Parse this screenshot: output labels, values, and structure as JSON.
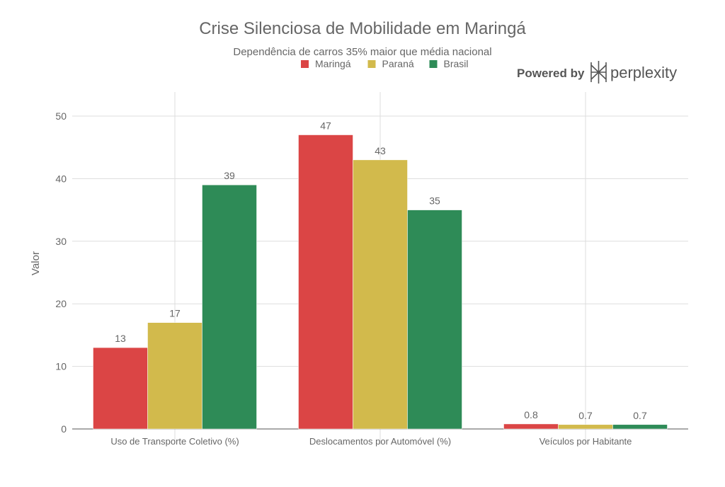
{
  "branding": {
    "powered_by": "Powered by",
    "logo_text": "perplexity"
  },
  "chart_data": {
    "type": "bar",
    "title": "Crise Silenciosa de Mobilidade em Maringá",
    "subtitle": "Dependência de carros 35% maior que média nacional",
    "xlabel": "",
    "ylabel": "Valor",
    "ylim": [
      0,
      50
    ],
    "yticks": [
      "0",
      "10",
      "20",
      "30",
      "40",
      "50"
    ],
    "grid": true,
    "legend_position": "top-center",
    "categories": [
      "Uso de Transporte Coletivo (%)",
      "Deslocamentos por Automóvel (%)",
      "Veículos por Habitante"
    ],
    "series": [
      {
        "name": "Maringá",
        "color": "#db4545",
        "values": [
          13,
          47,
          0.8
        ],
        "labels": [
          "13",
          "47",
          "0.8"
        ]
      },
      {
        "name": "Paraná",
        "color": "#d2ba4c",
        "values": [
          17,
          43,
          0.7
        ],
        "labels": [
          "17",
          "43",
          "0.7"
        ]
      },
      {
        "name": "Brasil",
        "color": "#2e8b57",
        "values": [
          39,
          35,
          0.7
        ],
        "labels": [
          "39",
          "35",
          "0.7"
        ]
      }
    ]
  }
}
